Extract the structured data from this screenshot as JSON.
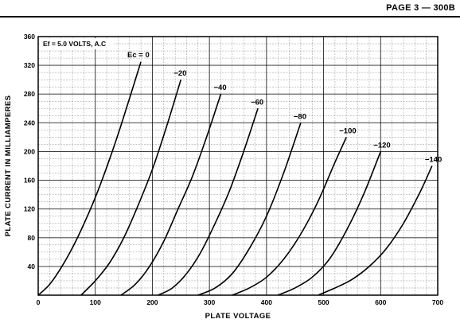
{
  "header": {
    "page_label": "PAGE 3 — 300B"
  },
  "annotations": {
    "filament": "Ef = 5.0 VOLTS, A.C",
    "grid_label": "Ec = 0"
  },
  "chart_data": {
    "type": "line",
    "xlabel": "PLATE VOLTAGE",
    "ylabel": "PLATE CURRENT IN MILLIAMPERES",
    "xlim": [
      0,
      700
    ],
    "ylim": [
      0,
      360
    ],
    "xticks": [
      0,
      100,
      200,
      300,
      400,
      500,
      600,
      700
    ],
    "yticks": [
      40,
      80,
      120,
      160,
      200,
      240,
      280,
      320,
      360
    ],
    "grid": true,
    "series": [
      {
        "name": "0",
        "x": [
          0,
          20,
          40,
          60,
          80,
          100,
          120,
          140,
          160,
          180
        ],
        "y": [
          0,
          15,
          38,
          66,
          99,
          136,
          178,
          224,
          274,
          325
        ]
      },
      {
        "name": "-20",
        "x": [
          75,
          100,
          125,
          150,
          175,
          200,
          225,
          250
        ],
        "y": [
          0,
          20,
          45,
          80,
          125,
          175,
          235,
          300
        ]
      },
      {
        "name": "-40",
        "x": [
          145,
          170,
          195,
          220,
          245,
          270,
          295,
          320
        ],
        "y": [
          0,
          15,
          40,
          75,
          120,
          165,
          220,
          280
        ]
      },
      {
        "name": "-60",
        "x": [
          210,
          235,
          260,
          285,
          310,
          335,
          360,
          385
        ],
        "y": [
          0,
          10,
          30,
          60,
          100,
          145,
          200,
          260
        ]
      },
      {
        "name": "-80",
        "x": [
          280,
          310,
          340,
          370,
          400,
          430,
          460
        ],
        "y": [
          0,
          10,
          30,
          65,
          110,
          170,
          240
        ]
      },
      {
        "name": "-100",
        "x": [
          340,
          370,
          400,
          430,
          460,
          490,
          520,
          540
        ],
        "y": [
          0,
          10,
          25,
          50,
          85,
          130,
          185,
          220
        ]
      },
      {
        "name": "-120",
        "x": [
          420,
          450,
          480,
          510,
          540,
          570,
          600
        ],
        "y": [
          0,
          10,
          25,
          50,
          90,
          140,
          200
        ]
      },
      {
        "name": "-140",
        "x": [
          490,
          520,
          550,
          580,
          610,
          640,
          670,
          690
        ],
        "y": [
          0,
          10,
          22,
          40,
          65,
          100,
          145,
          180
        ]
      }
    ]
  }
}
